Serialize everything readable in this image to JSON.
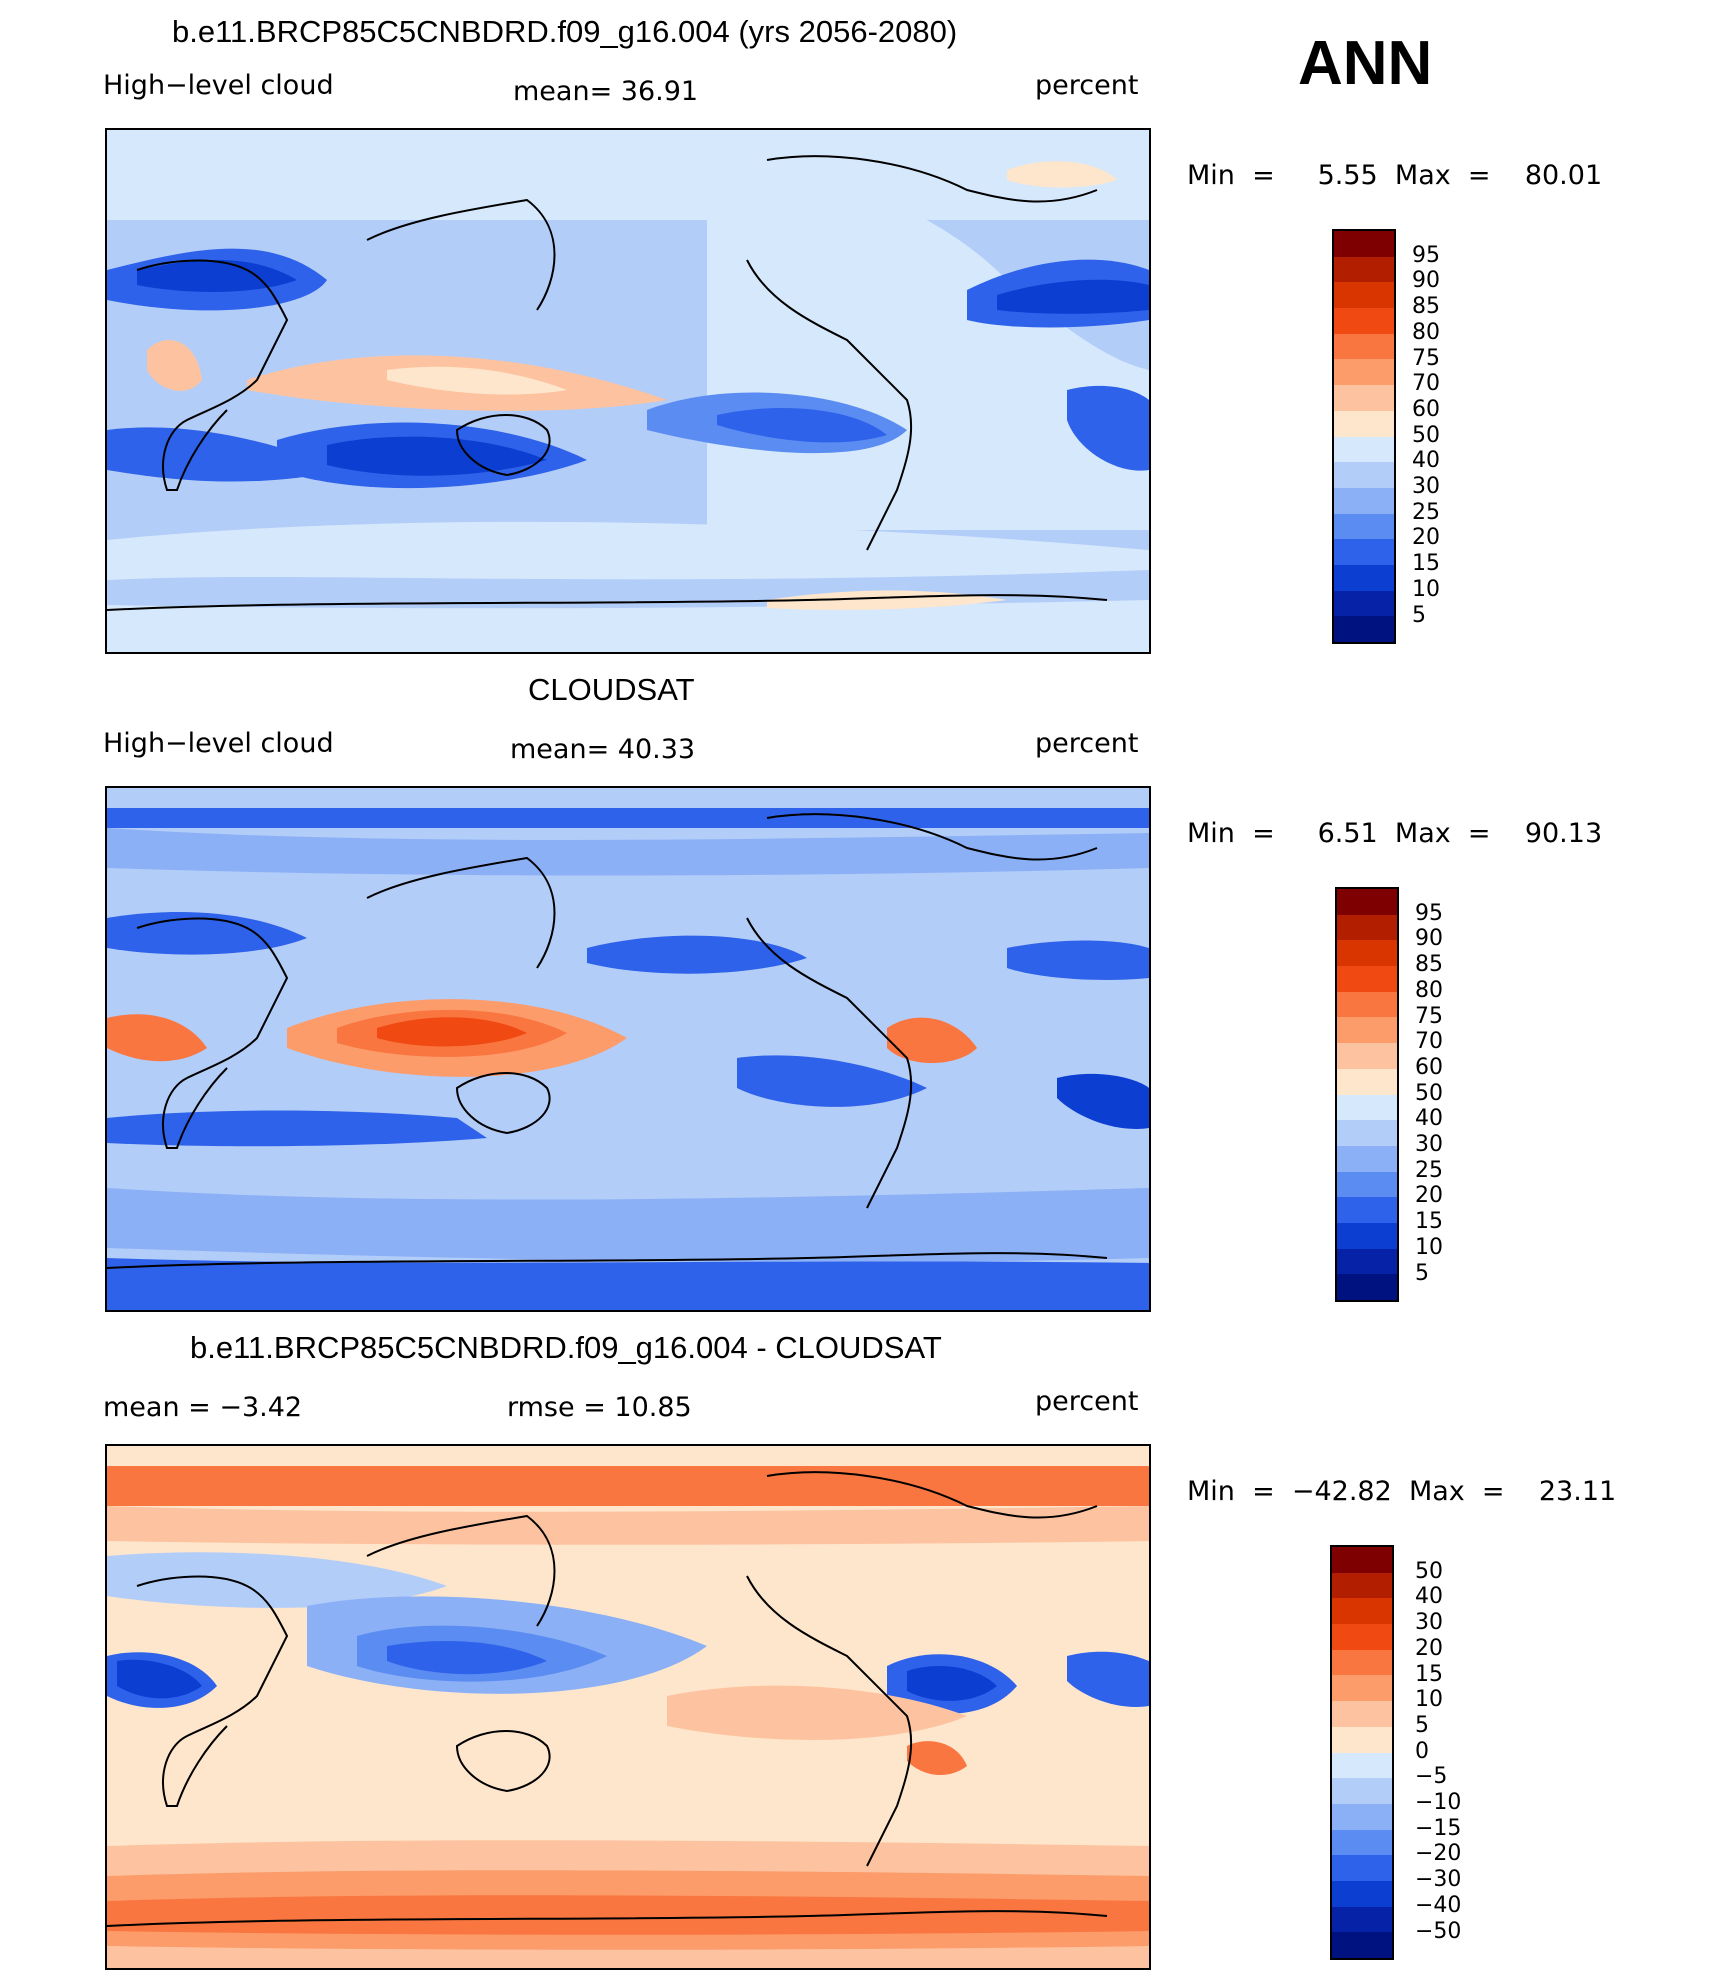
{
  "header": {
    "season": "ANN"
  },
  "panels": [
    {
      "title": "b.e11.BRCP85C5CNBDRD.f09_g16.004 (yrs 2056-2080)",
      "left_label": "High−level cloud",
      "center_label": "mean=   36.91",
      "right_label": "percent",
      "minmax": "Min  =     5.55  Max  =    80.01",
      "colorbar": {
        "labels": [
          "95",
          "90",
          "85",
          "80",
          "75",
          "70",
          "60",
          "50",
          "40",
          "30",
          "25",
          "20",
          "15",
          "10",
          "5"
        ],
        "colors": [
          "#7f0000",
          "#b21e00",
          "#d93500",
          "#f04a12",
          "#fa7640",
          "#fc9c6a",
          "#fdc3a0",
          "#fee6cc",
          "#d6e8fb",
          "#b3cdf9",
          "#8cb0f6",
          "#5b8cf2",
          "#2f62ea",
          "#0c3ed2",
          "#0623a8",
          "#001180"
        ]
      }
    },
    {
      "title": "CLOUDSAT",
      "left_label": "High−level cloud",
      "center_label": "mean=   40.33",
      "right_label": "percent",
      "minmax": "Min  =     6.51  Max  =    90.13",
      "colorbar": {
        "labels": [
          "95",
          "90",
          "85",
          "80",
          "75",
          "70",
          "60",
          "50",
          "40",
          "30",
          "25",
          "20",
          "15",
          "10",
          "5"
        ],
        "colors": [
          "#7f0000",
          "#b21e00",
          "#d93500",
          "#f04a12",
          "#fa7640",
          "#fc9c6a",
          "#fdc3a0",
          "#fee6cc",
          "#d6e8fb",
          "#b3cdf9",
          "#8cb0f6",
          "#5b8cf2",
          "#2f62ea",
          "#0c3ed2",
          "#0623a8",
          "#001180"
        ]
      }
    },
    {
      "title": "b.e11.BRCP85C5CNBDRD.f09_g16.004 - CLOUDSAT",
      "left_label": "mean  =    −3.42",
      "center_label": "rmse  =    10.85",
      "right_label": "percent",
      "minmax": "Min  =  −42.82  Max  =    23.11",
      "colorbar": {
        "labels": [
          "50",
          "40",
          "30",
          "20",
          "15",
          "10",
          "5",
          "0",
          "−5",
          "−10",
          "−15",
          "−20",
          "−30",
          "−40",
          "−50"
        ],
        "colors": [
          "#7f0000",
          "#b21e00",
          "#d93500",
          "#f04a12",
          "#fa7640",
          "#fc9c6a",
          "#fdc3a0",
          "#fee6cc",
          "#d6e8fb",
          "#b3cdf9",
          "#8cb0f6",
          "#5b8cf2",
          "#2f62ea",
          "#0c3ed2",
          "#0623a8",
          "#001180"
        ]
      }
    }
  ]
}
